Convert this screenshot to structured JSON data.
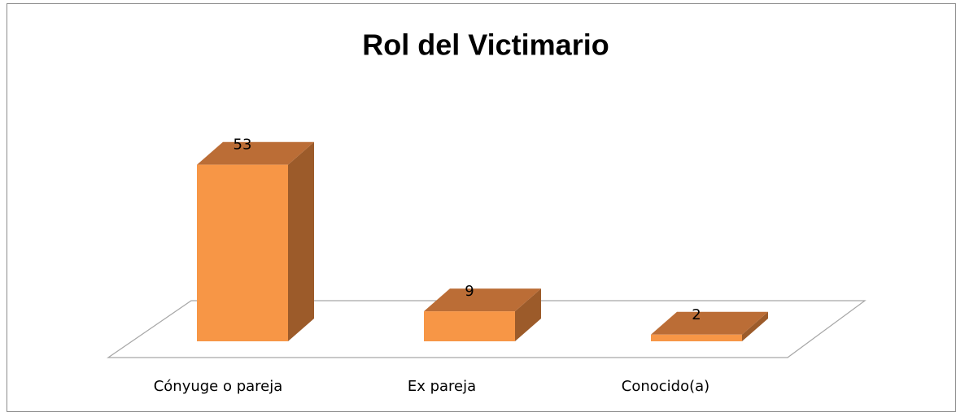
{
  "chart_data": {
    "type": "bar3d",
    "title": "Rol del Victimario",
    "categories": [
      "Cónyuge o pareja",
      "Ex pareja",
      "Conocido(a)"
    ],
    "values": [
      53,
      9,
      2
    ],
    "color": "#f79646"
  }
}
